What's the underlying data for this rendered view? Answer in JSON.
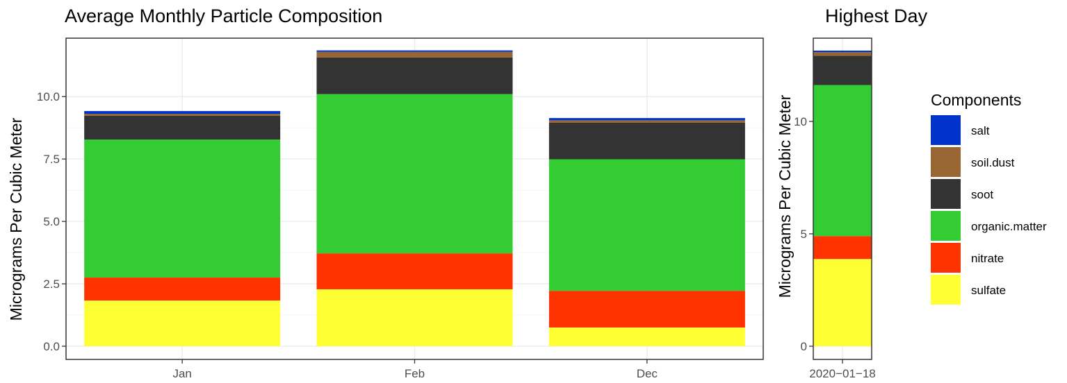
{
  "chart_data": [
    {
      "type": "bar",
      "stacked": true,
      "title": "Average Monthly Particle Composition",
      "xlabel": "",
      "ylabel": "Micrograms Per Cubic Meter",
      "categories": [
        "Jan",
        "Feb",
        "Dec"
      ],
      "ylim": [
        0,
        12
      ],
      "yticks": [
        "0.0",
        "2.5",
        "5.0",
        "7.5",
        "10.0"
      ],
      "ytick_values": [
        0,
        2.5,
        5,
        7.5,
        10
      ],
      "grid": true,
      "series": [
        {
          "name": "sulfate",
          "values": [
            1.83,
            2.28,
            0.75
          ]
        },
        {
          "name": "nitrate",
          "values": [
            0.92,
            1.44,
            1.47
          ]
        },
        {
          "name": "organic.matter",
          "values": [
            5.53,
            6.38,
            5.27
          ]
        },
        {
          "name": "soot",
          "values": [
            0.95,
            1.47,
            1.46
          ]
        },
        {
          "name": "soil.dust",
          "values": [
            0.08,
            0.22,
            0.1
          ]
        },
        {
          "name": "salt",
          "values": [
            0.11,
            0.06,
            0.09
          ]
        }
      ]
    },
    {
      "type": "bar",
      "stacked": true,
      "title": "Highest Day",
      "xlabel": "",
      "ylabel": "Micrograms Per Cubic Meter",
      "categories": [
        "2020−01−18"
      ],
      "ylim": [
        0,
        13.5
      ],
      "yticks": [
        "0",
        "5",
        "10"
      ],
      "ytick_values": [
        0,
        5,
        10
      ],
      "grid": true,
      "series": [
        {
          "name": "sulfate",
          "values": [
            3.88
          ]
        },
        {
          "name": "nitrate",
          "values": [
            1.02
          ]
        },
        {
          "name": "organic.matter",
          "values": [
            6.72
          ]
        },
        {
          "name": "soot",
          "values": [
            1.3
          ]
        },
        {
          "name": "soil.dust",
          "values": [
            0.16
          ]
        },
        {
          "name": "salt",
          "values": [
            0.07
          ]
        }
      ]
    }
  ],
  "legend": {
    "title": "Components",
    "placement": "right",
    "items": [
      {
        "name": "salt",
        "color": "#0033CC"
      },
      {
        "name": "soil.dust",
        "color": "#996633"
      },
      {
        "name": "soot",
        "color": "#333333"
      },
      {
        "name": "organic.matter",
        "color": "#33CC33"
      },
      {
        "name": "nitrate",
        "color": "#FF3300"
      },
      {
        "name": "sulfate",
        "color": "#FFFF33"
      }
    ]
  }
}
